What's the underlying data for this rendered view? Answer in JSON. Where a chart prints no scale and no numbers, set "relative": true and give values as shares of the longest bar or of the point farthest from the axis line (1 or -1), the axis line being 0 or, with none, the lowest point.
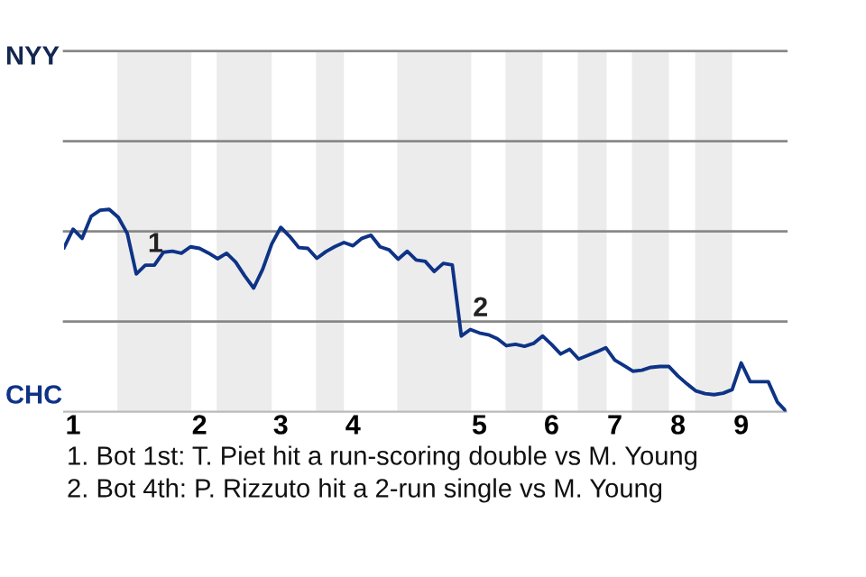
{
  "chart_data": {
    "type": "line",
    "relative": true,
    "categories": [
      null,
      "1",
      null,
      null,
      null,
      null,
      null,
      null,
      null,
      null,
      null,
      null,
      null,
      null,
      null,
      "2",
      null,
      null,
      null,
      null,
      null,
      null,
      null,
      null,
      "3",
      null,
      null,
      null,
      null,
      null,
      null,
      null,
      "4",
      null,
      null,
      null,
      null,
      null,
      null,
      null,
      null,
      null,
      null,
      null,
      null,
      null,
      "5",
      null,
      null,
      null,
      null,
      null,
      null,
      null,
      "6",
      null,
      null,
      null,
      null,
      null,
      null,
      "7",
      null,
      null,
      null,
      null,
      null,
      null,
      "8",
      null,
      null,
      null,
      null,
      null,
      null,
      "9",
      null,
      null,
      null,
      null,
      null
    ],
    "series": [
      {
        "color": "#0e3386",
        "values": [
          0.811,
          0.902,
          0.857,
          0.966,
          0.996,
          1,
          0.961,
          0.881,
          0.681,
          0.724,
          0.724,
          0.788,
          0.793,
          0.783,
          0.815,
          0.807,
          0.784,
          0.756,
          0.783,
          0.74,
          0.672,
          0.611,
          0.704,
          0.829,
          0.911,
          0.866,
          0.811,
          0.807,
          0.758,
          0.791,
          0.816,
          0.836,
          0.82,
          0.857,
          0.872,
          0.815,
          0.8,
          0.754,
          0.793,
          0.75,
          0.743,
          0.693,
          0.733,
          0.725,
          0.374,
          0.406,
          0.389,
          0.38,
          0.36,
          0.326,
          0.333,
          0.323,
          0.337,
          0.374,
          0.332,
          0.285,
          0.308,
          0.26,
          0.278,
          0.296,
          0.316,
          0.255,
          0.228,
          0.2,
          0.205,
          0.219,
          0.223,
          0.223,
          0.176,
          0.137,
          0.102,
          0.089,
          0.084,
          0.091,
          0.109,
          0.241,
          0.148,
          0.148,
          0.148,
          0.048,
          0
        ]
      }
    ],
    "ref_lines": [
      {
        "axis": "y",
        "value": 0.446,
        "color": "#888888"
      },
      {
        "axis": "y",
        "value": 0.891,
        "color": "#888888"
      },
      {
        "axis": "y",
        "value": 1.337,
        "color": "#888888"
      },
      {
        "axis": "y",
        "value": 1.783,
        "color": "#888888"
      }
    ],
    "annotations": [
      {
        "text": "1",
        "y": 0.724
      },
      {
        "text": "2",
        "y": 0.406
      },
      "NYY",
      "CHC",
      "1. Bot 1st: T. Piet hit a run-scoring double vs M. Young",
      "2. Bot 4th: P. Rizzuto hit a 2-run single vs M. Young"
    ]
  }
}
